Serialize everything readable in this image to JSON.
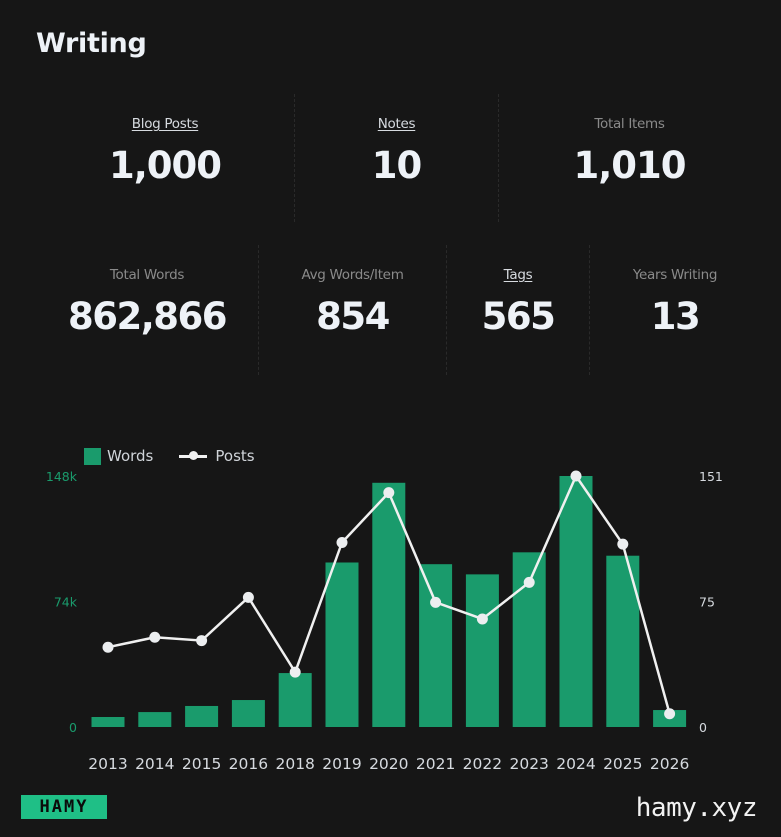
{
  "page": {
    "title": "Writing"
  },
  "stats_row1": [
    {
      "label": "Blog Posts",
      "value": "1,000",
      "link": true
    },
    {
      "label": "Notes",
      "value": "10",
      "link": true
    },
    {
      "label": "Total Items",
      "value": "1,010",
      "link": false
    }
  ],
  "stats_row2": [
    {
      "label": "Total Words",
      "value": "862,866",
      "link": false
    },
    {
      "label": "Avg Words/Item",
      "value": "854",
      "link": false
    },
    {
      "label": "Tags",
      "value": "565",
      "link": true
    },
    {
      "label": "Years Writing",
      "value": "13",
      "link": false
    }
  ],
  "legend": {
    "words": "Words",
    "posts": "Posts"
  },
  "colors": {
    "bar": "#1a9b6c",
    "line": "#f0f0f0",
    "left_axis": "#1a9b6c",
    "right_axis": "#d6dadf",
    "background": "#161616",
    "logo_bg": "#1fbf86"
  },
  "chart_data": {
    "type": "bar",
    "title": "",
    "categories": [
      "2013",
      "2014",
      "2015",
      "2016",
      "2018",
      "2019",
      "2020",
      "2021",
      "2022",
      "2023",
      "2024",
      "2025",
      "2026"
    ],
    "series": [
      {
        "name": "Words",
        "type": "bar",
        "axis": "left",
        "values": [
          5900,
          8800,
          12400,
          15900,
          31800,
          97000,
          144000,
          96000,
          90000,
          103000,
          148000,
          101000,
          10000
        ]
      },
      {
        "name": "Posts",
        "type": "line",
        "axis": "right",
        "values": [
          48,
          54,
          52,
          78,
          33,
          111,
          141,
          75,
          65,
          87,
          151,
          110,
          8
        ]
      }
    ],
    "left_axis": {
      "ticks": [
        "0",
        "74k",
        "148k"
      ],
      "ylim": [
        0,
        148000
      ]
    },
    "right_axis": {
      "ticks": [
        "0",
        "75",
        "151"
      ],
      "ylim": [
        0,
        151
      ]
    },
    "xlabel": "",
    "ylabel": "",
    "grid": false,
    "legend_position": "top-left"
  },
  "footer": {
    "logo": "HAMY",
    "url": "hamy.xyz"
  }
}
